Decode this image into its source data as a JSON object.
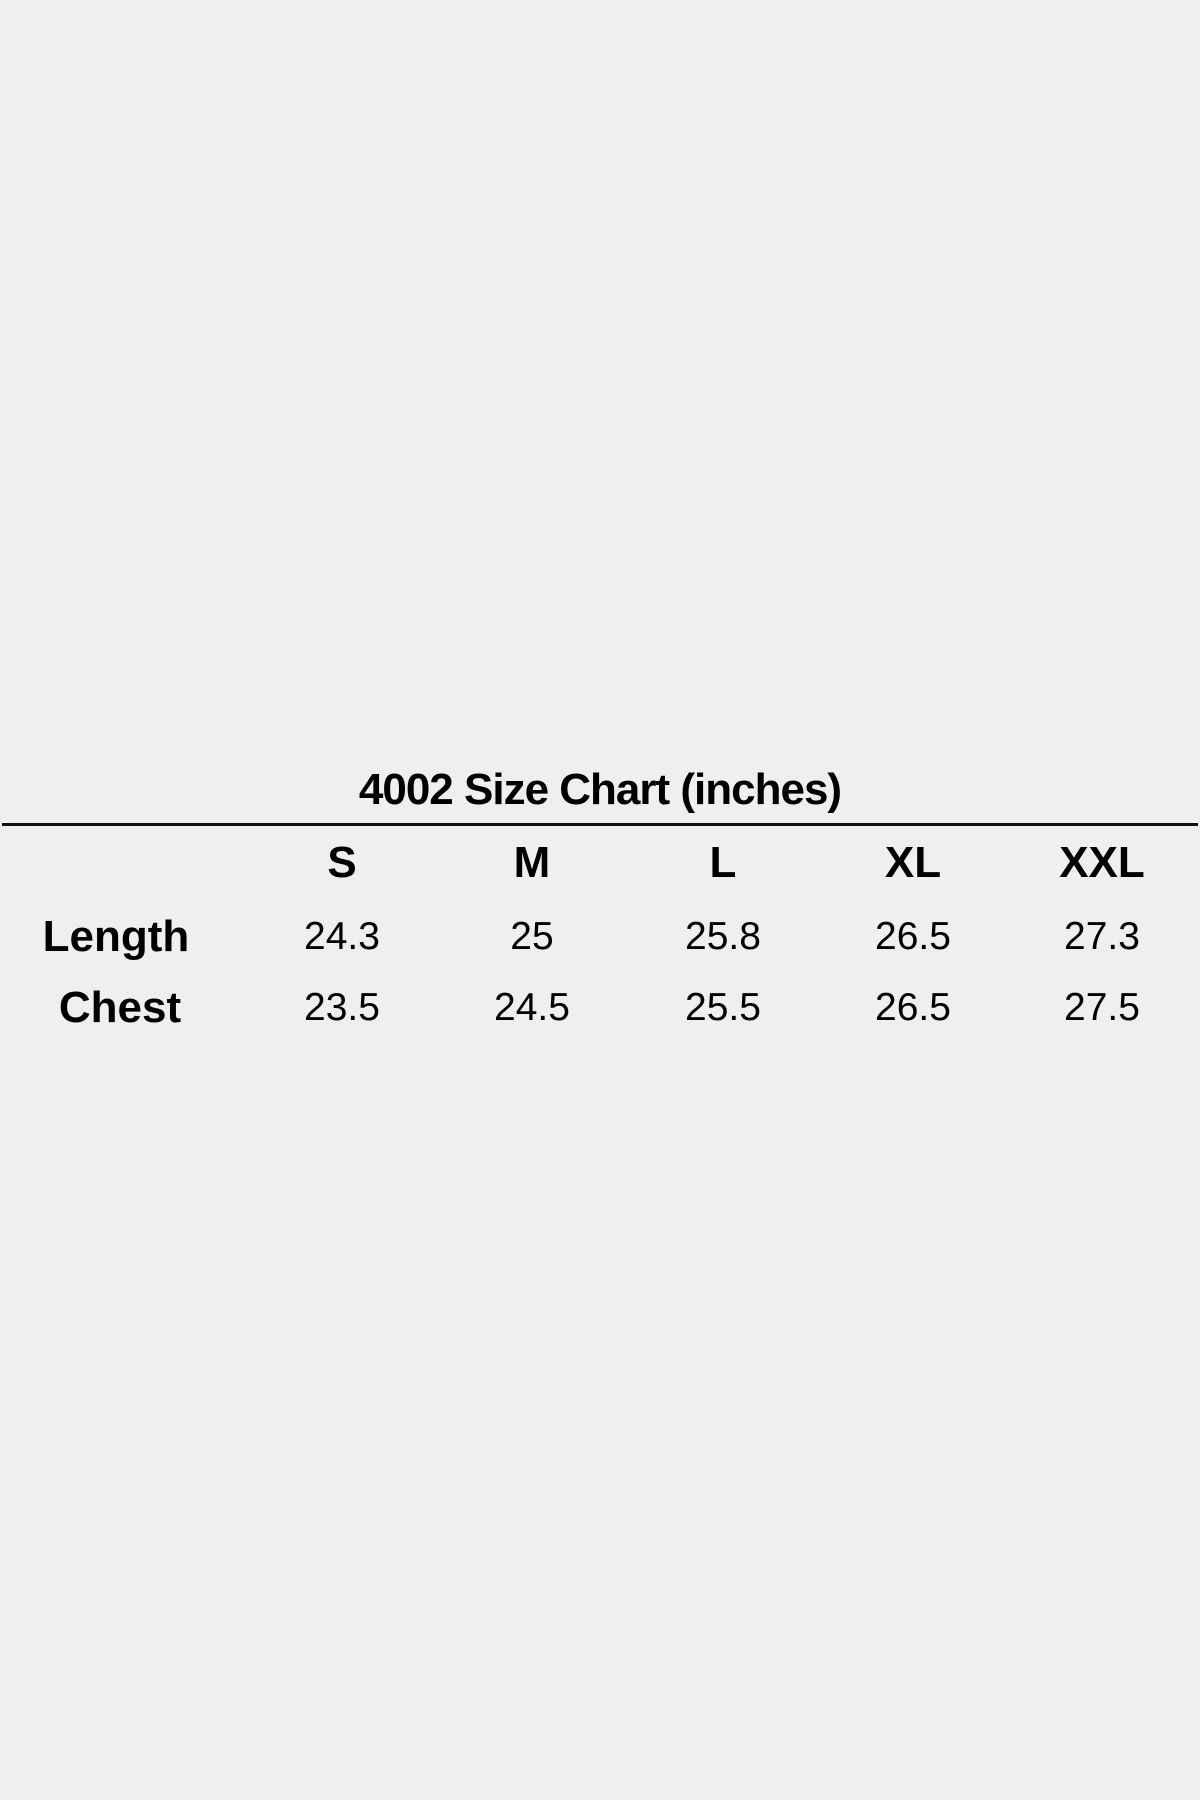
{
  "title": "4002 Size Chart (inches)",
  "columns": [
    "S",
    "M",
    "L",
    "XL",
    "XXL"
  ],
  "rows": [
    {
      "label": "Length",
      "values": [
        "24.3",
        "25",
        "25.8",
        "26.5",
        "27.3"
      ]
    },
    {
      "label": "Chest",
      "values": [
        "23.5",
        "24.5",
        "25.5",
        "26.5",
        "27.5"
      ]
    }
  ]
}
